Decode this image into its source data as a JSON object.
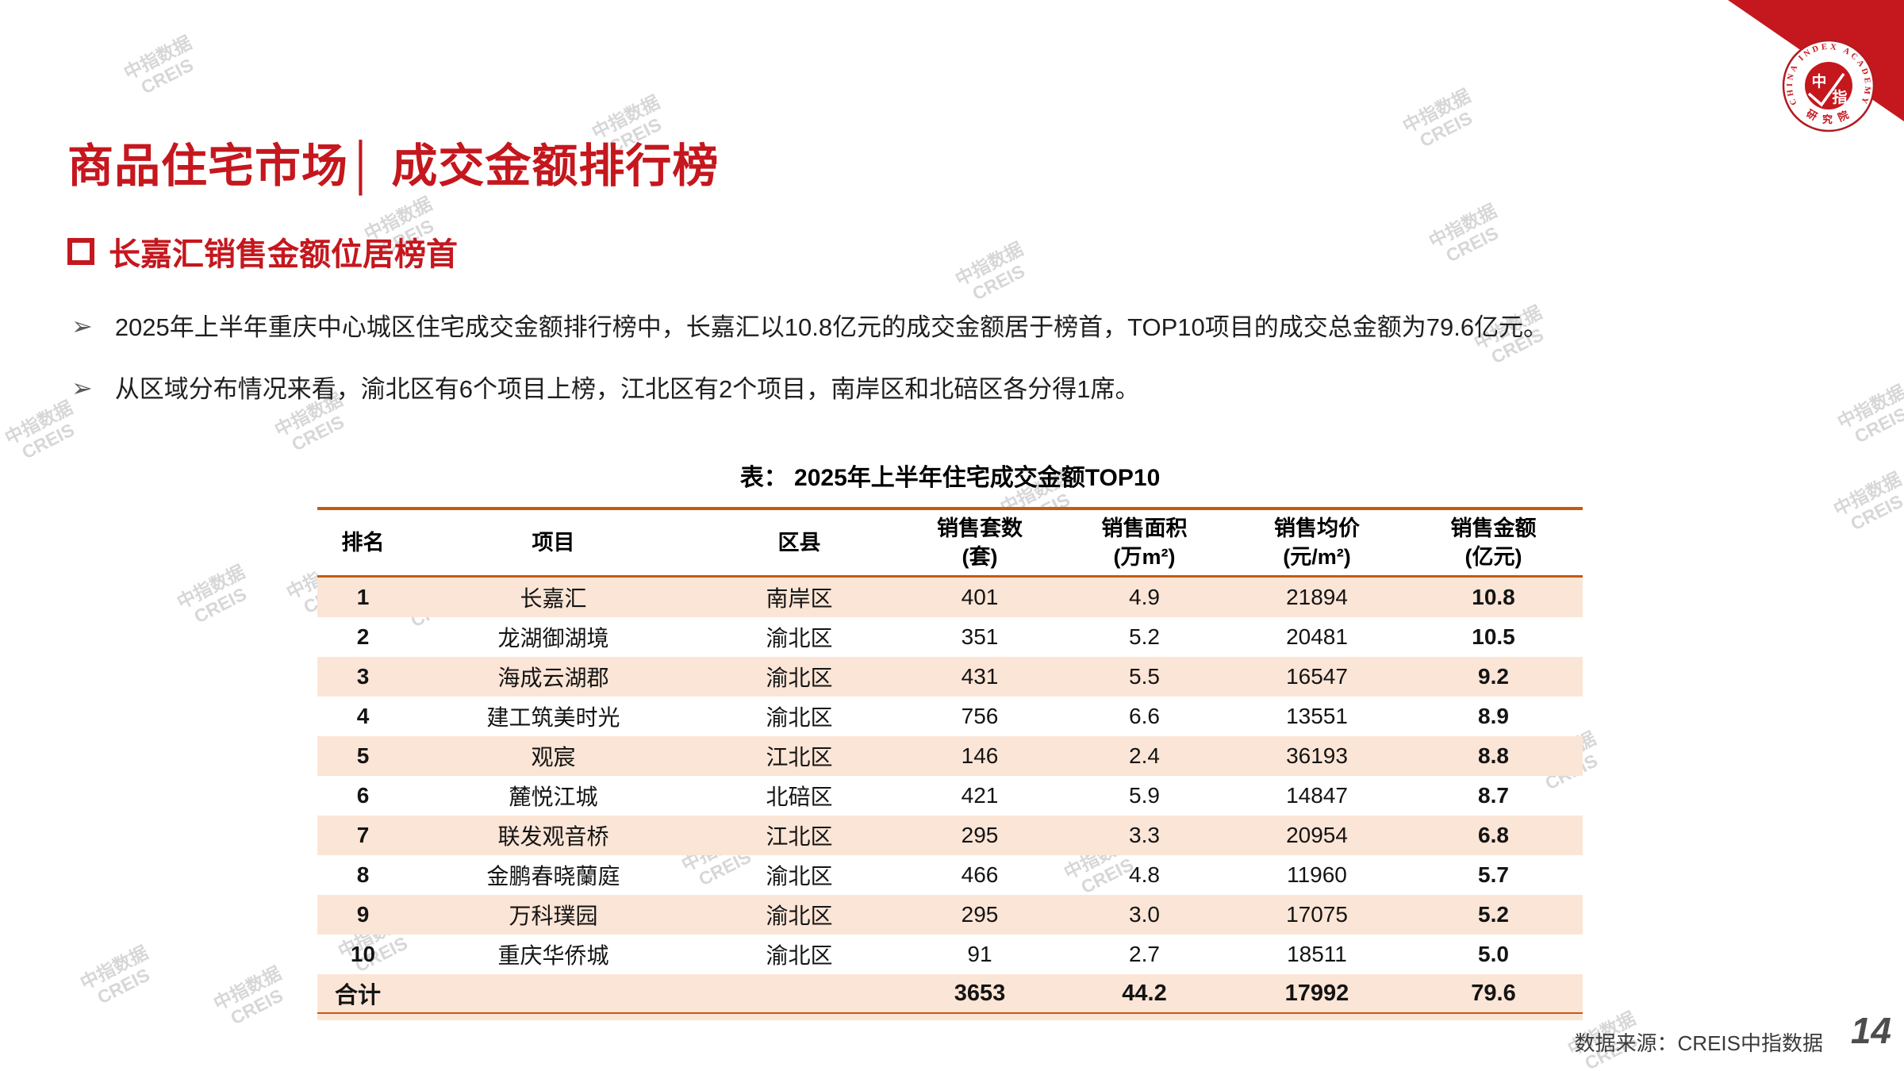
{
  "slide": {
    "title": "商品住宅市场│ 成交金额排行榜",
    "section_header": "长嘉汇销售金额位居榜首",
    "bullet_marker": "➢",
    "bullets": [
      "2025年上半年重庆中心城区住宅成交金额排行榜中，长嘉汇以10.8亿元的成交金额居于榜首，TOP10项目的成交总金额为79.6亿元。",
      "从区域分布情况来看，渝北区有6个项目上榜，江北区有2个项目，南岸区和北碚区各分得1席。"
    ]
  },
  "table": {
    "caption": "表： 2025年上半年住宅成交金额TOP10",
    "columns": [
      {
        "line1": "排名",
        "line2": ""
      },
      {
        "line1": "项目",
        "line2": ""
      },
      {
        "line1": "区县",
        "line2": ""
      },
      {
        "line1": "销售套数",
        "line2": "(套)"
      },
      {
        "line1": "销售面积",
        "line2": "(万m²)"
      },
      {
        "line1": "销售均价",
        "line2": "(元/m²)"
      },
      {
        "line1": "销售金额",
        "line2": "(亿元)"
      }
    ],
    "rows": [
      {
        "rank": "1",
        "project": "长嘉汇",
        "district": "南岸区",
        "units": "401",
        "area": "4.9",
        "avg_price": "21894",
        "amount": "10.8"
      },
      {
        "rank": "2",
        "project": "龙湖御湖境",
        "district": "渝北区",
        "units": "351",
        "area": "5.2",
        "avg_price": "20481",
        "amount": "10.5"
      },
      {
        "rank": "3",
        "project": "海成云湖郡",
        "district": "渝北区",
        "units": "431",
        "area": "5.5",
        "avg_price": "16547",
        "amount": "9.2"
      },
      {
        "rank": "4",
        "project": "建工筑美时光",
        "district": "渝北区",
        "units": "756",
        "area": "6.6",
        "avg_price": "13551",
        "amount": "8.9"
      },
      {
        "rank": "5",
        "project": "观宸",
        "district": "江北区",
        "units": "146",
        "area": "2.4",
        "avg_price": "36193",
        "amount": "8.8"
      },
      {
        "rank": "6",
        "project": "麓悦江城",
        "district": "北碚区",
        "units": "421",
        "area": "5.9",
        "avg_price": "14847",
        "amount": "8.7"
      },
      {
        "rank": "7",
        "project": "联发观音桥",
        "district": "江北区",
        "units": "295",
        "area": "3.3",
        "avg_price": "20954",
        "amount": "6.8"
      },
      {
        "rank": "8",
        "project": "金鹏春晓蘭庭",
        "district": "渝北区",
        "units": "466",
        "area": "4.8",
        "avg_price": "11960",
        "amount": "5.7"
      },
      {
        "rank": "9",
        "project": "万科璞园",
        "district": "渝北区",
        "units": "295",
        "area": "3.0",
        "avg_price": "17075",
        "amount": "5.2"
      },
      {
        "rank": "10",
        "project": "重庆华侨城",
        "district": "渝北区",
        "units": "91",
        "area": "2.7",
        "avg_price": "18511",
        "amount": "5.0"
      }
    ],
    "total": {
      "label": "合计",
      "units": "3653",
      "area": "44.2",
      "avg_price": "17992",
      "amount": "79.6"
    }
  },
  "footer": {
    "source": "数据来源：CREIS中指数据",
    "page_number": "14"
  },
  "watermark": {
    "line1": "中指数据",
    "line2": "CREIS"
  },
  "logo": {
    "arc_text": "CHINA INDEX ACADEMY",
    "bottom_arc_text": "研 究 院",
    "emblem_top": "中",
    "emblem_bottom": "指"
  },
  "colors": {
    "brand_red": "#C5171E",
    "table_line_orange": "#C55A11",
    "row_pink": "#FBE5D6",
    "text_dark": "#1A1A1A",
    "watermark_gray": "#D7D7D7"
  }
}
